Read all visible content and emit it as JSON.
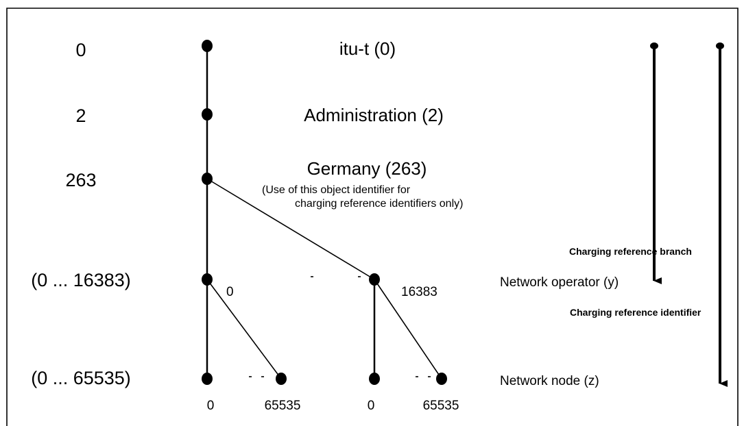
{
  "levels": [
    "0",
    "2",
    "263",
    "(0 ... 16383)",
    "(0 ... 65535)"
  ],
  "nodes": {
    "itu_t": "itu-t (0)",
    "administration": "Administration (2)",
    "germany": "Germany (263)",
    "germany_note_line1": "(Use of this object identifier for",
    "germany_note_line2": "charging reference identifiers only)"
  },
  "branch_labels": {
    "operator_first": "0",
    "operator_last": "16383",
    "node_first_a": "0",
    "node_last_a": "65535",
    "node_first_b": "0",
    "node_last_b": "65535"
  },
  "right_labels": {
    "network_operator": "Network operator (y)",
    "network_node": "Network node (z)",
    "charging_reference_branch": "Charging reference branch",
    "charging_reference_identifier": "Charging reference identifier"
  }
}
